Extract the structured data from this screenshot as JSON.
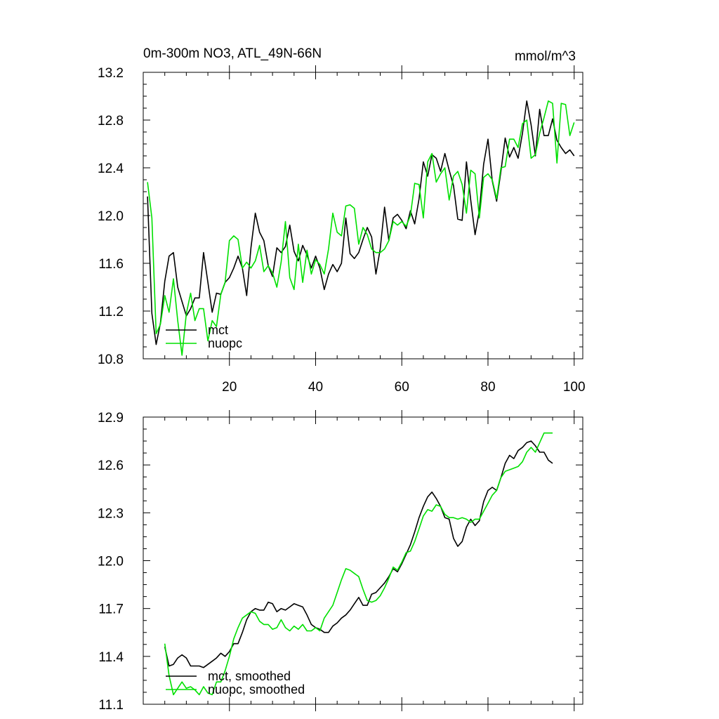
{
  "figure": {
    "title_left": "0m-300m NO3, ATL_49N-66N",
    "title_right": "mmol/m^3"
  },
  "chart_data": [
    {
      "type": "line",
      "title": "0m-300m NO3, ATL_49N-66N",
      "units": "mmol/m^3",
      "xlabel": "",
      "ylabel": "",
      "xlim": [
        0,
        102
      ],
      "ylim": [
        10.8,
        13.2
      ],
      "xticks": [
        20,
        40,
        60,
        80,
        100
      ],
      "yticks": [
        10.8,
        11.2,
        11.6,
        12.0,
        12.4,
        12.8,
        13.2
      ],
      "ytick_labels": [
        "10.8",
        "11.2",
        "11.6",
        "12.0",
        "12.4",
        "12.8",
        "13.2"
      ],
      "xtick_labels": [
        "20",
        "40",
        "60",
        "80",
        "100"
      ],
      "legend": {
        "position": "bottom-left",
        "entries": [
          "mct",
          "nuopc"
        ]
      },
      "x_start": 1,
      "series": [
        {
          "name": "mct",
          "color": "#000000",
          "values": [
            12.16,
            11.18,
            10.92,
            11.1,
            11.45,
            11.66,
            11.69,
            11.4,
            11.28,
            11.16,
            11.22,
            11.31,
            11.31,
            11.69,
            11.44,
            11.19,
            11.35,
            11.34,
            11.44,
            11.48,
            11.56,
            11.66,
            11.56,
            11.33,
            11.73,
            12.02,
            11.86,
            11.79,
            11.58,
            11.49,
            11.73,
            11.69,
            11.74,
            11.92,
            11.7,
            11.62,
            11.75,
            11.67,
            11.56,
            11.66,
            11.56,
            11.38,
            11.51,
            11.59,
            11.53,
            11.6,
            11.98,
            11.68,
            11.64,
            11.69,
            11.8,
            11.9,
            11.82,
            11.51,
            11.72,
            12.07,
            11.79,
            11.98,
            12.01,
            11.96,
            11.89,
            12.04,
            11.93,
            12.14,
            12.45,
            12.33,
            12.51,
            12.48,
            12.37,
            12.52,
            12.38,
            12.25,
            11.97,
            11.96,
            12.45,
            12.13,
            11.84,
            12.04,
            12.43,
            12.64,
            12.29,
            12.12,
            12.37,
            12.65,
            12.49,
            12.57,
            12.48,
            12.69,
            12.96,
            12.76,
            12.5,
            12.89,
            12.67,
            12.67,
            12.81,
            12.63,
            12.57,
            12.52,
            12.55,
            12.5
          ]
        },
        {
          "name": "nuopc",
          "color": "#00e000",
          "values": [
            12.28,
            11.98,
            11.01,
            11.09,
            11.33,
            11.19,
            11.47,
            11.12,
            10.83,
            11.18,
            11.35,
            11.12,
            11.22,
            11.22,
            10.95,
            11.12,
            11.07,
            11.34,
            11.44,
            11.79,
            11.83,
            11.8,
            11.56,
            11.61,
            11.56,
            11.62,
            11.75,
            11.53,
            11.58,
            11.52,
            11.4,
            11.61,
            11.95,
            11.48,
            11.38,
            11.76,
            11.44,
            11.71,
            11.51,
            11.63,
            11.59,
            11.51,
            11.72,
            12.02,
            11.86,
            11.83,
            12.08,
            12.09,
            12.06,
            11.76,
            11.9,
            11.84,
            11.72,
            11.69,
            11.69,
            11.72,
            11.79,
            11.95,
            11.92,
            11.95,
            11.91,
            12.0,
            12.27,
            12.26,
            11.98,
            12.45,
            12.52,
            12.28,
            12.35,
            12.4,
            12.13,
            12.33,
            12.37,
            12.26,
            12.02,
            12.38,
            12.35,
            11.98,
            12.32,
            12.35,
            12.3,
            12.14,
            12.4,
            12.41,
            12.64,
            12.64,
            12.57,
            12.77,
            12.8,
            12.48,
            12.51,
            12.69,
            12.82,
            12.96,
            12.94,
            12.44,
            12.94,
            12.93,
            12.67,
            12.78
          ]
        }
      ]
    },
    {
      "type": "line",
      "title": "",
      "xlabel": "",
      "ylabel": "",
      "xlim": [
        0,
        102
      ],
      "ylim": [
        11.1,
        12.9
      ],
      "xticks": [
        20,
        40,
        60,
        80,
        100
      ],
      "yticks": [
        11.1,
        11.4,
        11.7,
        12.0,
        12.3,
        12.6,
        12.9
      ],
      "ytick_labels": [
        "11.1",
        "11.4",
        "11.7",
        "12.0",
        "12.3",
        "12.6",
        "12.9"
      ],
      "legend": {
        "position": "bottom-left",
        "entries": [
          "mct, smoothed",
          "nuopc, smoothed"
        ]
      },
      "x_start": 5,
      "series": [
        {
          "name": "mct, smoothed",
          "color": "#000000",
          "values": [
            11.46,
            11.34,
            11.35,
            11.39,
            11.41,
            11.39,
            11.34,
            11.34,
            11.34,
            11.33,
            11.35,
            11.37,
            11.39,
            11.42,
            11.4,
            11.43,
            11.48,
            11.48,
            11.55,
            11.63,
            11.68,
            11.7,
            11.69,
            11.69,
            11.74,
            11.73,
            11.68,
            11.7,
            11.69,
            11.71,
            11.73,
            11.72,
            11.71,
            11.66,
            11.6,
            11.58,
            11.57,
            11.55,
            11.55,
            11.59,
            11.61,
            11.64,
            11.66,
            11.69,
            11.73,
            11.77,
            11.72,
            11.72,
            11.79,
            11.8,
            11.83,
            11.86,
            11.9,
            11.95,
            11.93,
            11.98,
            12.04,
            12.1,
            12.18,
            12.27,
            12.34,
            12.4,
            12.43,
            12.39,
            12.34,
            12.27,
            12.26,
            12.14,
            12.09,
            12.12,
            12.21,
            12.26,
            12.22,
            12.25,
            12.37,
            12.44,
            12.46,
            12.44,
            12.52,
            12.61,
            12.66,
            12.64,
            12.69,
            12.71,
            12.74,
            12.75,
            12.72,
            12.68,
            12.68,
            12.63,
            12.61
          ]
        },
        {
          "name": "nuopc, smoothed",
          "color": "#00e000",
          "values": [
            11.48,
            11.28,
            11.16,
            11.2,
            11.24,
            11.2,
            11.21,
            11.19,
            11.16,
            11.21,
            11.17,
            11.16,
            11.24,
            11.24,
            11.31,
            11.4,
            11.51,
            11.58,
            11.64,
            11.66,
            11.68,
            11.67,
            11.62,
            11.6,
            11.6,
            11.57,
            11.58,
            11.63,
            11.58,
            11.56,
            11.59,
            11.57,
            11.6,
            11.56,
            11.56,
            11.58,
            11.56,
            11.64,
            11.68,
            11.72,
            11.8,
            11.88,
            11.95,
            11.94,
            11.92,
            11.9,
            11.82,
            11.75,
            11.74,
            11.75,
            11.78,
            11.83,
            11.89,
            11.96,
            11.94,
            11.99,
            12.05,
            12.06,
            12.12,
            12.2,
            12.28,
            12.32,
            12.31,
            12.35,
            12.34,
            12.29,
            12.27,
            12.27,
            12.26,
            12.27,
            12.26,
            12.24,
            12.26,
            12.26,
            12.31,
            12.36,
            12.41,
            12.44,
            12.52,
            12.56,
            12.57,
            12.58,
            12.59,
            12.62,
            12.68,
            12.71,
            12.68,
            12.74,
            12.8,
            12.8,
            12.8
          ]
        }
      ]
    }
  ]
}
